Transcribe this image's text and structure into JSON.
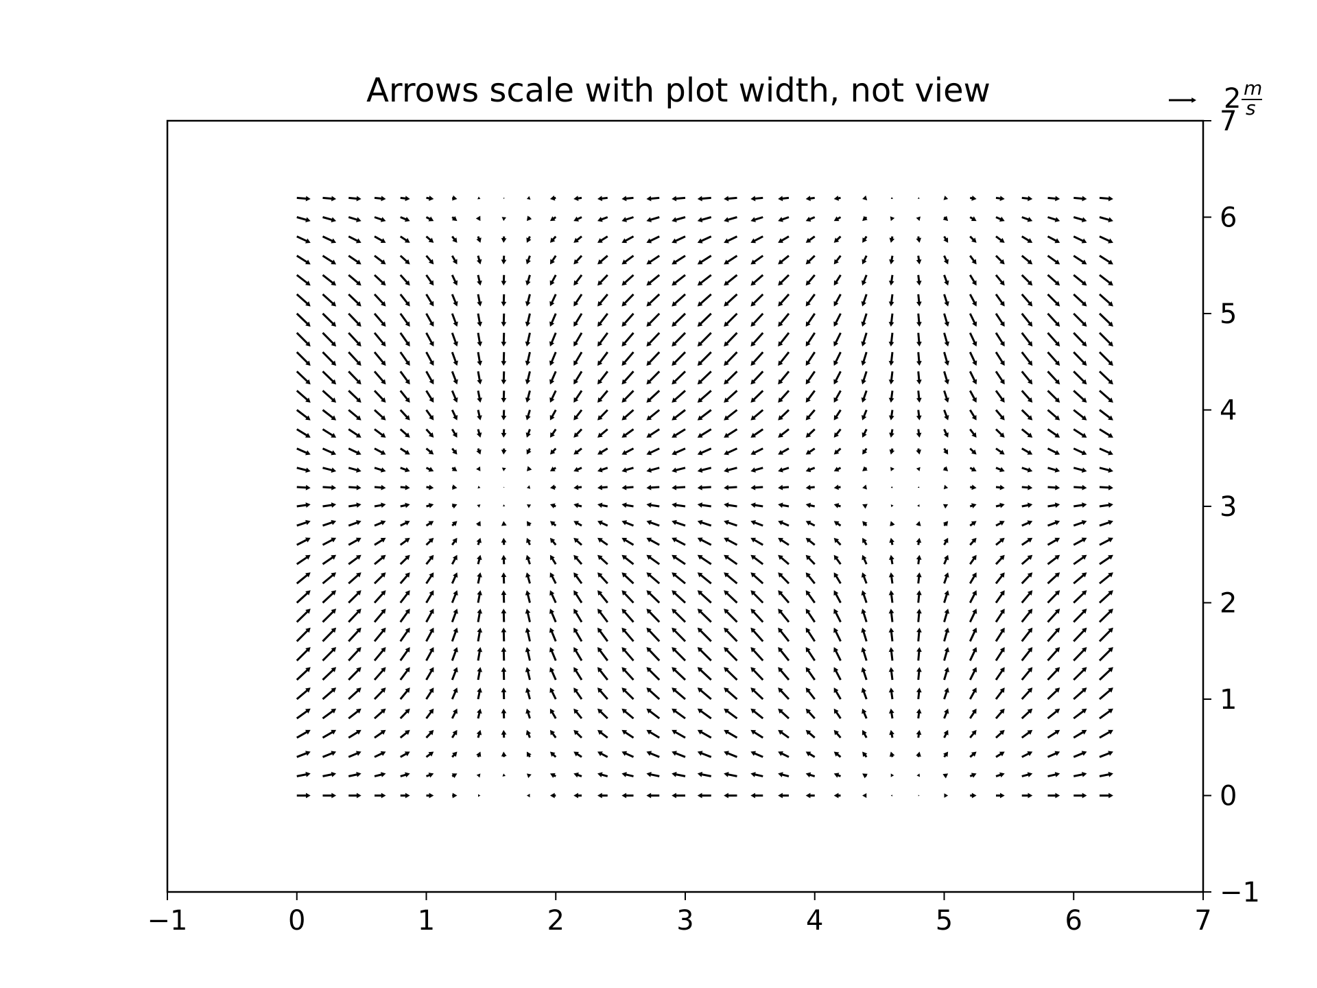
{
  "chart_data": {
    "type": "quiver",
    "title": "Arrows scale with plot width, not view",
    "xlabel": "",
    "ylabel": "",
    "xlim": [
      -1,
      7
    ],
    "ylim": [
      -1,
      7
    ],
    "x_ticks": [
      "−1",
      "0",
      "1",
      "2",
      "3",
      "4",
      "5",
      "6",
      "7"
    ],
    "y_ticks": [
      "−1",
      "0",
      "1",
      "2",
      "3",
      "4",
      "5",
      "6",
      "7"
    ],
    "y_axis_side": "right",
    "grid": false,
    "field": "U = cos(X), V = sin(Y)",
    "grid_x": {
      "start": 0,
      "stop": 6.3,
      "step": 0.2
    },
    "grid_y": {
      "start": 0,
      "stop": 6.3,
      "step": 0.2
    },
    "key": {
      "value": 2,
      "label_number": "2",
      "label_unit_numerator": "m",
      "label_unit_denominator": "s",
      "position": "top-right"
    },
    "colors": {
      "arrows": "#000000",
      "axes": "#000000",
      "background": "#ffffff"
    }
  }
}
